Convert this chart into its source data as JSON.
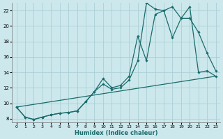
{
  "xlabel": "Humidex (Indice chaleur)",
  "background_color": "#cce8ec",
  "grid_color": "#aacfd6",
  "line_color": "#1a6b6b",
  "xlim": [
    -0.5,
    23.5
  ],
  "ylim": [
    7.5,
    23.0
  ],
  "yticks": [
    8,
    10,
    12,
    14,
    16,
    18,
    20,
    22
  ],
  "xticks": [
    0,
    1,
    2,
    3,
    4,
    5,
    6,
    7,
    8,
    9,
    10,
    11,
    12,
    13,
    14,
    15,
    16,
    17,
    18,
    19,
    20,
    21,
    22,
    23
  ],
  "line1_x": [
    0,
    1,
    2,
    3,
    4,
    5,
    6,
    7,
    8,
    9,
    10,
    11,
    12,
    13,
    14,
    15,
    16,
    17,
    18,
    19,
    20,
    21,
    22,
    23
  ],
  "line1_y": [
    9.5,
    8.2,
    7.9,
    8.2,
    8.5,
    8.7,
    8.8,
    9.0,
    10.2,
    11.5,
    13.2,
    12.0,
    12.3,
    13.5,
    18.7,
    15.5,
    21.5,
    22.0,
    18.5,
    21.0,
    21.0,
    19.2,
    16.5,
    14.2
  ],
  "line2_x": [
    0,
    1,
    2,
    3,
    4,
    5,
    6,
    7,
    8,
    9,
    10,
    11,
    12,
    13,
    14,
    15,
    16,
    17,
    18,
    19,
    20,
    21,
    22,
    23
  ],
  "line2_y": [
    9.5,
    8.2,
    7.9,
    8.2,
    8.5,
    8.7,
    8.8,
    9.0,
    10.2,
    11.5,
    12.5,
    11.8,
    12.0,
    13.0,
    15.5,
    23.0,
    22.2,
    22.0,
    22.5,
    21.0,
    22.5,
    14.0,
    14.2,
    13.5
  ],
  "line3_x": [
    0,
    23
  ],
  "line3_y": [
    9.5,
    13.5
  ]
}
